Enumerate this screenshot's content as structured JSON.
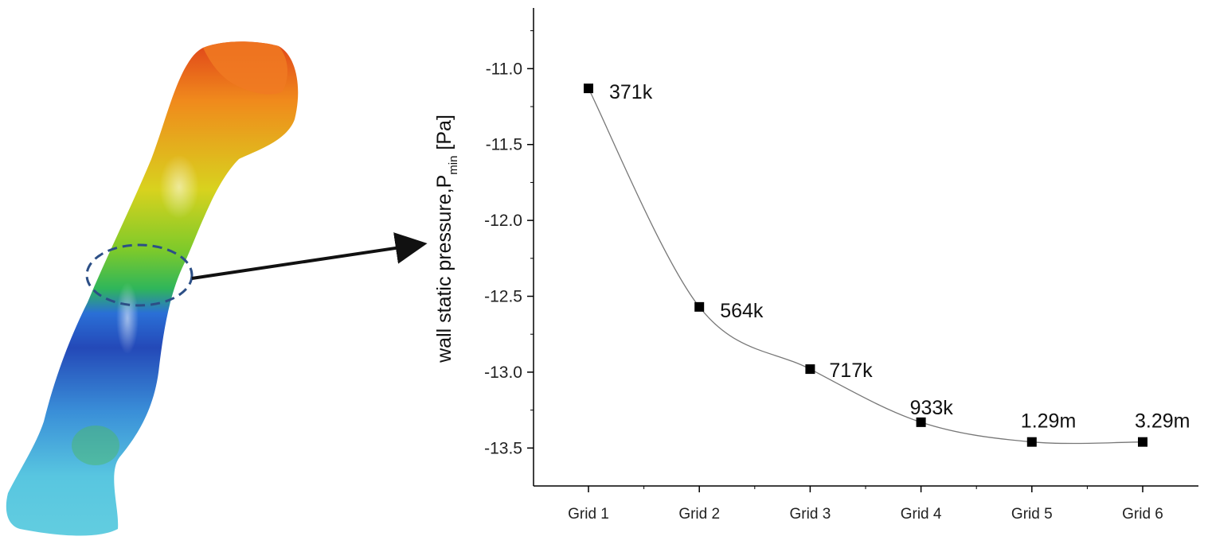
{
  "chart_data": {
    "type": "line",
    "title": "",
    "xlabel": "",
    "ylabel": {
      "main": "wall static pressure,P",
      "subscript": "min",
      "unit": " [Pa]"
    },
    "categories": [
      "Grid 1",
      "Grid 2",
      "Grid 3",
      "Grid 4",
      "Grid 5",
      "Grid 6"
    ],
    "series": [
      {
        "values": [
          -11.13,
          -12.57,
          -12.98,
          -13.33,
          -13.46,
          -13.46
        ],
        "point_labels": [
          "371k",
          "564k",
          "717k",
          "933k",
          "1.29m",
          "3.29m"
        ],
        "marker": "square",
        "line": "smooth",
        "color": "#000000",
        "line_color": "#777777"
      }
    ],
    "ylim": [
      -13.75,
      -10.6
    ],
    "yticks": [
      -11.0,
      -11.5,
      -12.0,
      -12.5,
      -13.0,
      -13.5
    ],
    "ytick_labels": [
      "-11.0",
      "-11.5",
      "-12.0",
      "-12.5",
      "-13.0",
      "-13.5"
    ],
    "grid": false,
    "legend": "none"
  },
  "figure": {
    "model_colormap": [
      "#e0441a",
      "#f08a1c",
      "#d8d21e",
      "#7fca2a",
      "#2fb65a",
      "#2a6fd6",
      "#2449b8",
      "#58c6e0"
    ],
    "highlight_ring_color": "#2c4f86",
    "arrow_color": "#111111"
  }
}
